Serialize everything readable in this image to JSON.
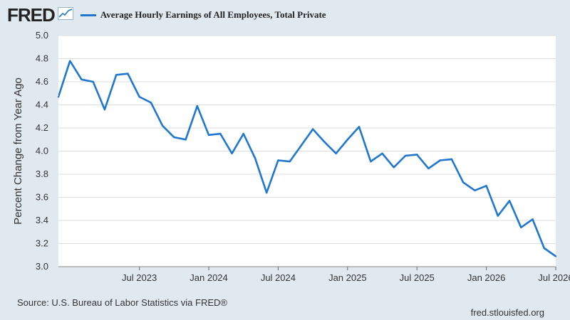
{
  "header": {
    "logo_text": "FRED",
    "logo_icon": "chart-trend-icon"
  },
  "footer": {
    "source": "Source: U.S. Bureau of Labor Statistics via FRED®",
    "site": "fred.stlouisfed.org"
  },
  "colors": {
    "background": "#e1e9f0",
    "plot_bg": "#ffffff",
    "line": "#1f77d0",
    "grid": "#dddddd"
  },
  "chart_data": {
    "type": "line",
    "title": "",
    "xlabel": "",
    "ylabel": "Percent Change from Year Ago",
    "ylim": [
      3.0,
      5.0
    ],
    "yticks": [
      "3.0",
      "3.2",
      "3.4",
      "3.6",
      "3.8",
      "4.0",
      "4.2",
      "4.4",
      "4.6",
      "4.8",
      "5.0"
    ],
    "xticks": [
      {
        "label": "Jul 2023",
        "date": "2023-07"
      },
      {
        "label": "Jan 2024",
        "date": "2024-01"
      },
      {
        "label": "Jul 2024",
        "date": "2024-07"
      },
      {
        "label": "Jan 2025",
        "date": "2025-01"
      },
      {
        "label": "Jul 2025",
        "date": "2025-07"
      },
      {
        "label": "Jan 2026",
        "date": "2026-01"
      },
      {
        "label": "Jul 2026",
        "date": "2026-07"
      }
    ],
    "grid": true,
    "legend": "top-left",
    "series": [
      {
        "name": "Average Hourly Earnings of All Employees, Total Private",
        "x": [
          "2022-12",
          "2023-01",
          "2023-02",
          "2023-03",
          "2023-04",
          "2023-05",
          "2023-06",
          "2023-07",
          "2023-08",
          "2023-09",
          "2023-10",
          "2023-11",
          "2023-12",
          "2024-01",
          "2024-02",
          "2024-03",
          "2024-04",
          "2024-05",
          "2024-06",
          "2024-07",
          "2024-08",
          "2024-09",
          "2024-10",
          "2024-11",
          "2024-12",
          "2025-01",
          "2025-02",
          "2025-03",
          "2025-04",
          "2025-05",
          "2025-06",
          "2025-07",
          "2025-08",
          "2025-09",
          "2025-10",
          "2025-11",
          "2025-12",
          "2026-01",
          "2026-02",
          "2026-03",
          "2026-04",
          "2026-05",
          "2026-06",
          "2026-07"
        ],
        "values": [
          4.47,
          4.78,
          4.62,
          4.6,
          4.36,
          4.66,
          4.67,
          4.47,
          4.42,
          4.22,
          4.12,
          4.1,
          4.39,
          4.14,
          4.15,
          3.98,
          4.15,
          3.94,
          3.64,
          3.92,
          3.91,
          4.05,
          4.19,
          4.08,
          3.98,
          4.1,
          4.21,
          3.91,
          3.98,
          3.86,
          3.96,
          3.97,
          3.85,
          3.92,
          3.93,
          3.73,
          3.66,
          3.7,
          3.44,
          3.57,
          3.34,
          3.41,
          3.16,
          3.09
        ]
      }
    ]
  }
}
